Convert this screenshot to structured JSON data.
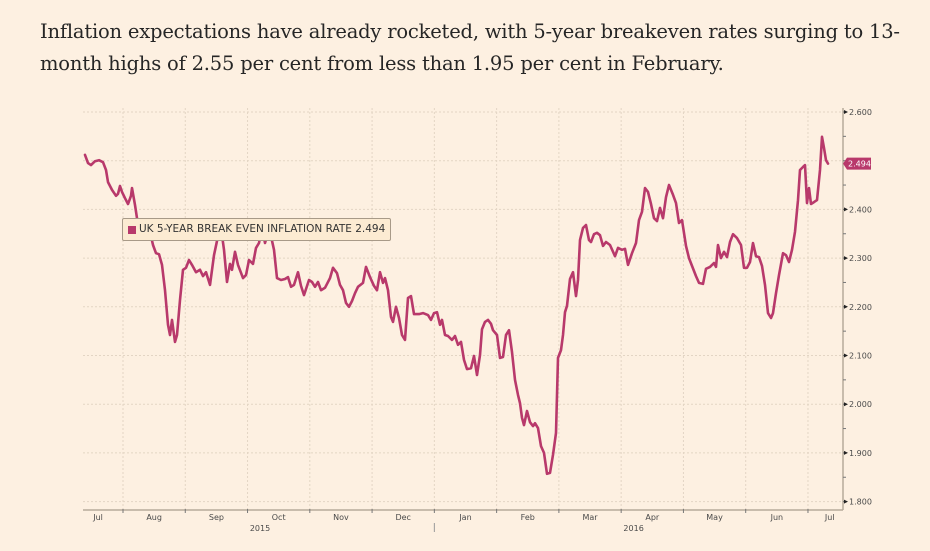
{
  "caption": "Inflation expectations have already rocketed, with 5-year breakeven rates surging to 13-month highs of 2.55 per cent from less than 1.95 per cent in February.",
  "chart_data": {
    "type": "line",
    "title": "",
    "xlabel": "",
    "ylabel": "",
    "x_units": "months since 1 Jul 2015",
    "xlim": [
      0.39,
      12.55
    ],
    "ylim": [
      1.8,
      2.6
    ],
    "yticks": [
      1.8,
      1.9,
      2.0,
      2.1,
      2.2,
      2.3,
      2.4,
      2.6
    ],
    "ytick_labels": [
      "1.800",
      "1.900",
      "2.000",
      "2.100",
      "2.200",
      "2.300",
      "2.400",
      "2.600"
    ],
    "ygrid": [
      1.8,
      1.9,
      2.0,
      2.1,
      2.2,
      2.3,
      2.4,
      2.5,
      2.6
    ],
    "xticks": [
      {
        "pos": 0.6,
        "label": "Jul"
      },
      {
        "pos": 1.5,
        "label": "Aug"
      },
      {
        "pos": 2.5,
        "label": "Sep"
      },
      {
        "pos": 3.5,
        "label": "Oct"
      },
      {
        "pos": 4.5,
        "label": "Nov"
      },
      {
        "pos": 5.5,
        "label": "Dec"
      },
      {
        "pos": 6.5,
        "label": "Jan"
      },
      {
        "pos": 7.5,
        "label": "Feb"
      },
      {
        "pos": 8.5,
        "label": "Mar"
      },
      {
        "pos": 9.5,
        "label": "Apr"
      },
      {
        "pos": 10.5,
        "label": "May"
      },
      {
        "pos": 11.5,
        "label": "Jun"
      },
      {
        "pos": 12.35,
        "label": "Jul"
      }
    ],
    "month_boundaries": [
      1,
      2,
      3,
      4,
      5,
      6,
      7,
      8,
      9,
      10,
      11,
      12
    ],
    "year_labels": [
      {
        "pos": 3.2,
        "label": "2015"
      },
      {
        "pos": 9.2,
        "label": "2016"
      }
    ],
    "year_divider": 6,
    "grid": true,
    "legend": {
      "position": "top-left",
      "label": "UK 5-YEAR BREAK EVEN INFLATION RATE 2.494"
    },
    "last_value_label": "2.494",
    "last_value": 2.494,
    "series": [
      {
        "name": "UK 5-YEAR BREAK EVEN INFLATION RATE",
        "color": "#b8396b",
        "points": [
          [
            0.39,
            2.512
          ],
          [
            0.438,
            2.495
          ],
          [
            0.486,
            2.491
          ],
          [
            0.55,
            2.499
          ],
          [
            0.615,
            2.501
          ],
          [
            0.679,
            2.497
          ],
          [
            0.727,
            2.481
          ],
          [
            0.759,
            2.456
          ],
          [
            0.823,
            2.44
          ],
          [
            0.888,
            2.428
          ],
          [
            0.92,
            2.432
          ],
          [
            0.952,
            2.448
          ],
          [
            0.984,
            2.436
          ],
          [
            1.032,
            2.423
          ],
          [
            1.08,
            2.411
          ],
          [
            1.128,
            2.428
          ],
          [
            1.145,
            2.444
          ],
          [
            1.193,
            2.409
          ],
          [
            1.225,
            2.382
          ],
          [
            1.257,
            2.374
          ],
          [
            1.289,
            2.378
          ],
          [
            1.337,
            2.362
          ],
          [
            1.385,
            2.354
          ],
          [
            1.434,
            2.354
          ],
          [
            1.482,
            2.327
          ],
          [
            1.53,
            2.31
          ],
          [
            1.578,
            2.308
          ],
          [
            1.626,
            2.286
          ],
          [
            1.674,
            2.234
          ],
          [
            1.723,
            2.163
          ],
          [
            1.755,
            2.142
          ],
          [
            1.787,
            2.173
          ],
          [
            1.835,
            2.128
          ],
          [
            1.867,
            2.142
          ],
          [
            1.915,
            2.214
          ],
          [
            1.964,
            2.276
          ],
          [
            2.012,
            2.28
          ],
          [
            2.06,
            2.296
          ],
          [
            2.108,
            2.286
          ],
          [
            2.172,
            2.271
          ],
          [
            2.237,
            2.276
          ],
          [
            2.285,
            2.263
          ],
          [
            2.333,
            2.271
          ],
          [
            2.397,
            2.245
          ],
          [
            2.461,
            2.306
          ],
          [
            2.526,
            2.345
          ],
          [
            2.574,
            2.362
          ],
          [
            2.622,
            2.317
          ],
          [
            2.67,
            2.251
          ],
          [
            2.718,
            2.288
          ],
          [
            2.75,
            2.276
          ],
          [
            2.799,
            2.313
          ],
          [
            2.847,
            2.286
          ],
          [
            2.927,
            2.259
          ],
          [
            2.975,
            2.265
          ],
          [
            3.023,
            2.296
          ],
          [
            3.088,
            2.288
          ],
          [
            3.136,
            2.321
          ],
          [
            3.184,
            2.331
          ],
          [
            3.232,
            2.362
          ],
          [
            3.28,
            2.331
          ],
          [
            3.329,
            2.352
          ],
          [
            3.377,
            2.345
          ],
          [
            3.425,
            2.317
          ],
          [
            3.473,
            2.259
          ],
          [
            3.537,
            2.255
          ],
          [
            3.602,
            2.257
          ],
          [
            3.65,
            2.261
          ],
          [
            3.698,
            2.241
          ],
          [
            3.746,
            2.245
          ],
          [
            3.81,
            2.271
          ],
          [
            3.859,
            2.243
          ],
          [
            3.907,
            2.224
          ],
          [
            3.987,
            2.255
          ],
          [
            4.035,
            2.251
          ],
          [
            4.083,
            2.241
          ],
          [
            4.132,
            2.251
          ],
          [
            4.18,
            2.234
          ],
          [
            4.244,
            2.239
          ],
          [
            4.324,
            2.259
          ],
          [
            4.372,
            2.28
          ],
          [
            4.437,
            2.269
          ],
          [
            4.485,
            2.245
          ],
          [
            4.533,
            2.234
          ],
          [
            4.581,
            2.208
          ],
          [
            4.629,
            2.2
          ],
          [
            4.678,
            2.212
          ],
          [
            4.726,
            2.228
          ],
          [
            4.774,
            2.241
          ],
          [
            4.854,
            2.249
          ],
          [
            4.902,
            2.282
          ],
          [
            4.967,
            2.261
          ],
          [
            5.031,
            2.243
          ],
          [
            5.079,
            2.234
          ],
          [
            5.127,
            2.271
          ],
          [
            5.175,
            2.249
          ],
          [
            5.208,
            2.259
          ],
          [
            5.256,
            2.234
          ],
          [
            5.304,
            2.179
          ],
          [
            5.336,
            2.169
          ],
          [
            5.384,
            2.2
          ],
          [
            5.432,
            2.177
          ],
          [
            5.48,
            2.142
          ],
          [
            5.529,
            2.132
          ],
          [
            5.577,
            2.218
          ],
          [
            5.625,
            2.222
          ],
          [
            5.673,
            2.185
          ],
          [
            5.753,
            2.185
          ],
          [
            5.818,
            2.187
          ],
          [
            5.898,
            2.183
          ],
          [
            5.946,
            2.173
          ],
          [
            5.994,
            2.187
          ],
          [
            6.043,
            2.189
          ],
          [
            6.091,
            2.163
          ],
          [
            6.123,
            2.173
          ],
          [
            6.171,
            2.142
          ],
          [
            6.219,
            2.14
          ],
          [
            6.283,
            2.132
          ],
          [
            6.332,
            2.14
          ],
          [
            6.38,
            2.122
          ],
          [
            6.428,
            2.128
          ],
          [
            6.476,
            2.091
          ],
          [
            6.524,
            2.072
          ],
          [
            6.589,
            2.074
          ],
          [
            6.637,
            2.099
          ],
          [
            6.685,
            2.06
          ],
          [
            6.733,
            2.101
          ],
          [
            6.765,
            2.154
          ],
          [
            6.813,
            2.169
          ],
          [
            6.862,
            2.173
          ],
          [
            6.91,
            2.165
          ],
          [
            6.942,
            2.152
          ],
          [
            7.006,
            2.142
          ],
          [
            7.054,
            2.095
          ],
          [
            7.102,
            2.097
          ],
          [
            7.151,
            2.142
          ],
          [
            7.199,
            2.152
          ],
          [
            7.247,
            2.107
          ],
          [
            7.295,
            2.05
          ],
          [
            7.343,
            2.019
          ],
          [
            7.376,
            2.002
          ],
          [
            7.408,
            1.972
          ],
          [
            7.44,
            1.957
          ],
          [
            7.488,
            1.986
          ],
          [
            7.536,
            1.963
          ],
          [
            7.584,
            1.955
          ],
          [
            7.616,
            1.961
          ],
          [
            7.665,
            1.951
          ],
          [
            7.713,
            1.914
          ],
          [
            7.761,
            1.9
          ],
          [
            7.809,
            1.857
          ],
          [
            7.857,
            1.859
          ],
          [
            7.906,
            1.896
          ],
          [
            7.954,
            1.941
          ],
          [
            7.986,
            2.095
          ],
          [
            8.034,
            2.111
          ],
          [
            8.066,
            2.142
          ],
          [
            8.098,
            2.189
          ],
          [
            8.13,
            2.202
          ],
          [
            8.178,
            2.257
          ],
          [
            8.227,
            2.271
          ],
          [
            8.275,
            2.222
          ],
          [
            8.307,
            2.255
          ],
          [
            8.339,
            2.337
          ],
          [
            8.387,
            2.362
          ],
          [
            8.435,
            2.368
          ],
          [
            8.484,
            2.337
          ],
          [
            8.516,
            2.333
          ],
          [
            8.564,
            2.349
          ],
          [
            8.612,
            2.352
          ],
          [
            8.66,
            2.347
          ],
          [
            8.708,
            2.325
          ],
          [
            8.757,
            2.333
          ],
          [
            8.821,
            2.327
          ],
          [
            8.901,
            2.304
          ],
          [
            8.949,
            2.321
          ],
          [
            9.014,
            2.317
          ],
          [
            9.062,
            2.319
          ],
          [
            9.11,
            2.286
          ],
          [
            9.174,
            2.31
          ],
          [
            9.238,
            2.331
          ],
          [
            9.286,
            2.378
          ],
          [
            9.335,
            2.395
          ],
          [
            9.383,
            2.444
          ],
          [
            9.431,
            2.436
          ],
          [
            9.479,
            2.411
          ],
          [
            9.527,
            2.382
          ],
          [
            9.576,
            2.376
          ],
          [
            9.624,
            2.403
          ],
          [
            9.672,
            2.382
          ],
          [
            9.72,
            2.425
          ],
          [
            9.768,
            2.45
          ],
          [
            9.833,
            2.43
          ],
          [
            9.881,
            2.413
          ],
          [
            9.929,
            2.372
          ],
          [
            9.977,
            2.378
          ],
          [
            10.041,
            2.325
          ],
          [
            10.09,
            2.3
          ],
          [
            10.138,
            2.284
          ],
          [
            10.202,
            2.263
          ],
          [
            10.25,
            2.249
          ],
          [
            10.314,
            2.247
          ],
          [
            10.362,
            2.278
          ],
          [
            10.427,
            2.282
          ],
          [
            10.491,
            2.29
          ],
          [
            10.523,
            2.282
          ],
          [
            10.555,
            2.327
          ],
          [
            10.603,
            2.3
          ],
          [
            10.651,
            2.313
          ],
          [
            10.7,
            2.302
          ],
          [
            10.748,
            2.333
          ],
          [
            10.796,
            2.349
          ],
          [
            10.86,
            2.341
          ],
          [
            10.924,
            2.327
          ],
          [
            10.973,
            2.28
          ],
          [
            11.021,
            2.28
          ],
          [
            11.069,
            2.292
          ],
          [
            11.117,
            2.331
          ],
          [
            11.165,
            2.304
          ],
          [
            11.214,
            2.302
          ],
          [
            11.262,
            2.284
          ],
          [
            11.31,
            2.245
          ],
          [
            11.358,
            2.187
          ],
          [
            11.406,
            2.177
          ],
          [
            11.438,
            2.187
          ],
          [
            11.487,
            2.228
          ],
          [
            11.535,
            2.265
          ],
          [
            11.599,
            2.31
          ],
          [
            11.647,
            2.306
          ],
          [
            11.695,
            2.292
          ],
          [
            11.744,
            2.317
          ],
          [
            11.792,
            2.354
          ],
          [
            11.84,
            2.419
          ],
          [
            11.872,
            2.481
          ],
          [
            11.92,
            2.487
          ],
          [
            11.952,
            2.491
          ],
          [
            11.984,
            2.413
          ],
          [
            12.017,
            2.444
          ],
          [
            12.049,
            2.411
          ],
          [
            12.097,
            2.415
          ],
          [
            12.145,
            2.419
          ],
          [
            12.193,
            2.481
          ],
          [
            12.225,
            2.549
          ],
          [
            12.257,
            2.526
          ],
          [
            12.29,
            2.501
          ],
          [
            12.322,
            2.494
          ]
        ]
      }
    ]
  }
}
